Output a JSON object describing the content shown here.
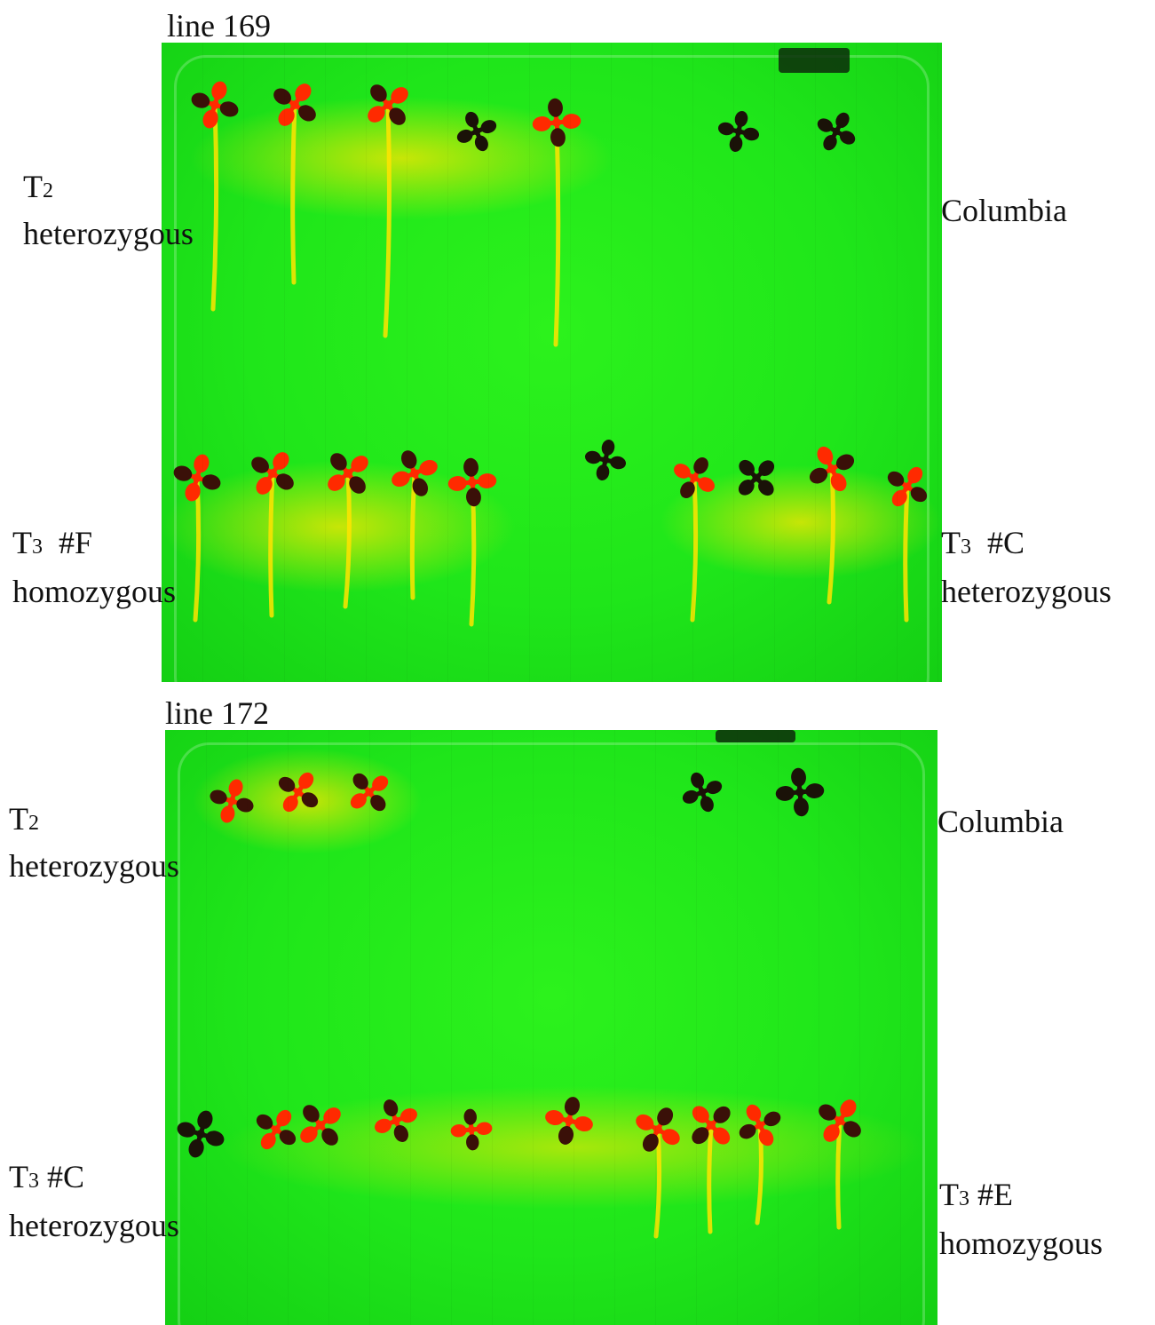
{
  "colors": {
    "plate_green": "#1fe61a",
    "seedling_red": "#ff2a00",
    "seedling_dark": "#1a1208",
    "root_yellow": "#ffe400"
  },
  "panels": [
    {
      "title": "line  169",
      "left_top": {
        "main": "T",
        "sub": "2",
        "line2": "heterozygous"
      },
      "right_top": {
        "line1": "Columbia"
      },
      "left_bottom": {
        "main": "T",
        "sub": "3",
        "after": "  #F",
        "line2": "homozygous"
      },
      "right_bottom": {
        "main": "T",
        "sub": "3",
        "after": "  #C",
        "line2": "heterozygous"
      }
    },
    {
      "title": "line 172",
      "left_top": {
        "main": "T",
        "sub": "2",
        "line2": "heterozygous"
      },
      "right_top": {
        "line1": "Columbia"
      },
      "left_bottom": {
        "main": "T",
        "sub": "3",
        "after": " #C",
        "line2": "heterozygous"
      },
      "right_bottom": {
        "main": "T",
        "sub": "3",
        "after": " #E",
        "line2": "homozygous"
      }
    }
  ]
}
